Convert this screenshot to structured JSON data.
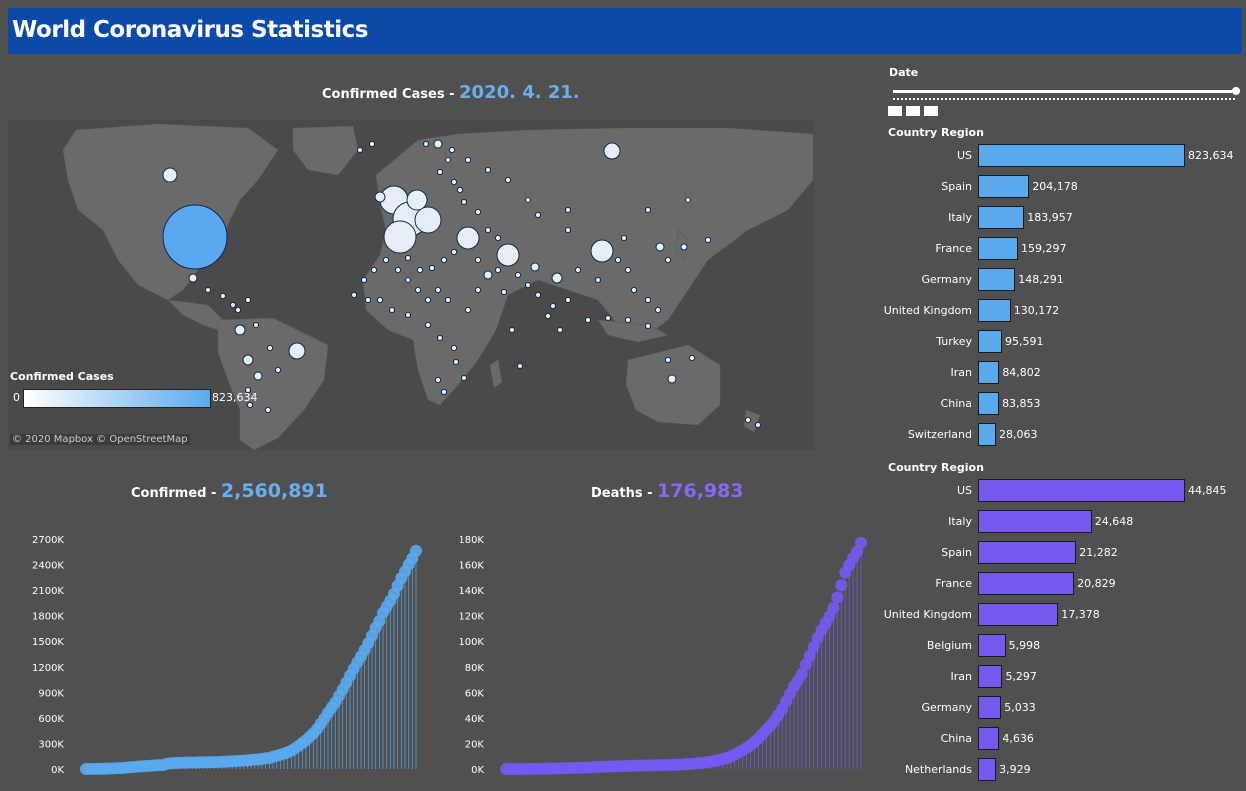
{
  "header": {
    "title": "World Coronavirus Statistics"
  },
  "map": {
    "title_prefix": "Confirmed Cases - ",
    "date": "2020. 4. 21.",
    "legend_title": "Confirmed Cases",
    "legend_min": "0",
    "legend_max": "823,634",
    "attribution": "© 2020 Mapbox © OpenStreetMap",
    "land_color": "#6a6a6a",
    "water_color": "#4a4a4a"
  },
  "filter": {
    "date_label": "Date"
  },
  "confirmed_bars": {
    "header": "Country Region",
    "color": "#5aa9ee",
    "rows": [
      {
        "country": "US",
        "value": 823634,
        "label": "823,634"
      },
      {
        "country": "Spain",
        "value": 204178,
        "label": "204,178"
      },
      {
        "country": "Italy",
        "value": 183957,
        "label": "183,957"
      },
      {
        "country": "France",
        "value": 159297,
        "label": "159,297"
      },
      {
        "country": "Germany",
        "value": 148291,
        "label": "148,291"
      },
      {
        "country": "United Kingdom",
        "value": 130172,
        "label": "130,172"
      },
      {
        "country": "Turkey",
        "value": 95591,
        "label": "95,591"
      },
      {
        "country": "Iran",
        "value": 84802,
        "label": "84,802"
      },
      {
        "country": "China",
        "value": 83853,
        "label": "83,853"
      },
      {
        "country": "Switzerland",
        "value": 28063,
        "label": "28,063"
      }
    ]
  },
  "deaths_bars": {
    "header": "Country Region",
    "color": "#7759f2",
    "rows": [
      {
        "country": "US",
        "value": 44845,
        "label": "44,845"
      },
      {
        "country": "Italy",
        "value": 24648,
        "label": "24,648"
      },
      {
        "country": "Spain",
        "value": 21282,
        "label": "21,282"
      },
      {
        "country": "France",
        "value": 20829,
        "label": "20,829"
      },
      {
        "country": "United Kingdom",
        "value": 17378,
        "label": "17,378"
      },
      {
        "country": "Belgium",
        "value": 5998,
        "label": "5,998"
      },
      {
        "country": "Iran",
        "value": 5297,
        "label": "5,297"
      },
      {
        "country": "Germany",
        "value": 5033,
        "label": "5,033"
      },
      {
        "country": "China",
        "value": 4636,
        "label": "4,636"
      },
      {
        "country": "Netherlands",
        "value": 3929,
        "label": "3,929"
      }
    ]
  },
  "confirmed_total": {
    "label": "Confirmed - ",
    "value": "2,560,891"
  },
  "deaths_total": {
    "label": "Deaths - ",
    "value": "176,983"
  },
  "chart_data": [
    {
      "type": "bar",
      "title": "Country Region (Confirmed)",
      "categories": [
        "US",
        "Spain",
        "Italy",
        "France",
        "Germany",
        "United Kingdom",
        "Turkey",
        "Iran",
        "China",
        "Switzerland"
      ],
      "values": [
        823634,
        204178,
        183957,
        159297,
        148291,
        130172,
        95591,
        84802,
        83853,
        28063
      ]
    },
    {
      "type": "bar",
      "title": "Country Region (Deaths)",
      "categories": [
        "US",
        "Italy",
        "Spain",
        "France",
        "United Kingdom",
        "Belgium",
        "Iran",
        "Germany",
        "China",
        "Netherlands"
      ],
      "values": [
        44845,
        24648,
        21282,
        20829,
        17378,
        5998,
        5297,
        5033,
        4636,
        3929
      ]
    },
    {
      "type": "line",
      "title": "Confirmed",
      "color": "#5aa9ee",
      "y_ticks": [
        "0K",
        "300K",
        "600K",
        "900K",
        "1200K",
        "1500K",
        "1800K",
        "2100K",
        "2400K",
        "2700K"
      ],
      "ylim": [
        0,
        2700000
      ],
      "x_start": "2020-01-22",
      "x_end": "2020-04-21",
      "values": [
        555,
        654,
        941,
        1434,
        2118,
        2927,
        5578,
        6166,
        8234,
        9927,
        12038,
        16787,
        19881,
        23892,
        27635,
        30794,
        34391,
        37120,
        40150,
        42762,
        44802,
        45221,
        60368,
        66885,
        69030,
        71224,
        73258,
        75136,
        75639,
        76197,
        76819,
        78572,
        78958,
        79561,
        80406,
        81388,
        82746,
        84112,
        86011,
        88369,
        90306,
        92840,
        95120,
        97886,
        101801,
        105847,
        109821,
        113590,
        118620,
        125875,
        128352,
        145205,
        156101,
        167454,
        181574,
        197102,
        214821,
        242570,
        272208,
        304507,
        336953,
        378235,
        418045,
        467653,
        529591,
        593291,
        660706,
        720117,
        782365,
        857487,
        932605,
        1013466,
        1095917,
        1176060,
        1249754,
        1321481,
        1396476,
        1479804,
        1565278,
        1657526,
        1735650,
        1834721,
        1904838,
        1976191,
        2056054,
        2152647,
        2240191,
        2317759,
        2401378,
        2472259,
        2560891
      ]
    },
    {
      "type": "line",
      "title": "Deaths",
      "color": "#7759f2",
      "y_ticks": [
        "0K",
        "20K",
        "40K",
        "60K",
        "80K",
        "100K",
        "120K",
        "140K",
        "160K",
        "180K"
      ],
      "ylim": [
        0,
        180000
      ],
      "x_start": "2020-01-22",
      "x_end": "2020-04-21",
      "values": [
        17,
        18,
        26,
        42,
        56,
        82,
        131,
        133,
        171,
        213,
        259,
        362,
        426,
        492,
        564,
        634,
        719,
        806,
        906,
        1013,
        1113,
        1118,
        1371,
        1523,
        1666,
        1770,
        1868,
        2007,
        2122,
        2247,
        2251,
        2458,
        2469,
        2629,
        2708,
        2770,
        2814,
        2872,
        2941,
        2996,
        3085,
        3160,
        3254,
        3348,
        3460,
        3558,
        3802,
        3988,
        4262,
        4615,
        4720,
        5404,
        5819,
        6440,
        7126,
        7905,
        8733,
        9867,
        11299,
        12973,
        14651,
        16505,
        18625,
        21181,
        23970,
        27198,
        30652,
        33925,
        37582,
        42107,
        46809,
        52983,
        58787,
        64606,
        69374,
        74565,
        81865,
        88338,
        95455,
        102525,
        108503,
        114091,
        119482,
        125984,
        134177,
        143800,
        153822,
        159510,
        165044,
        169986,
        176983
      ]
    }
  ]
}
